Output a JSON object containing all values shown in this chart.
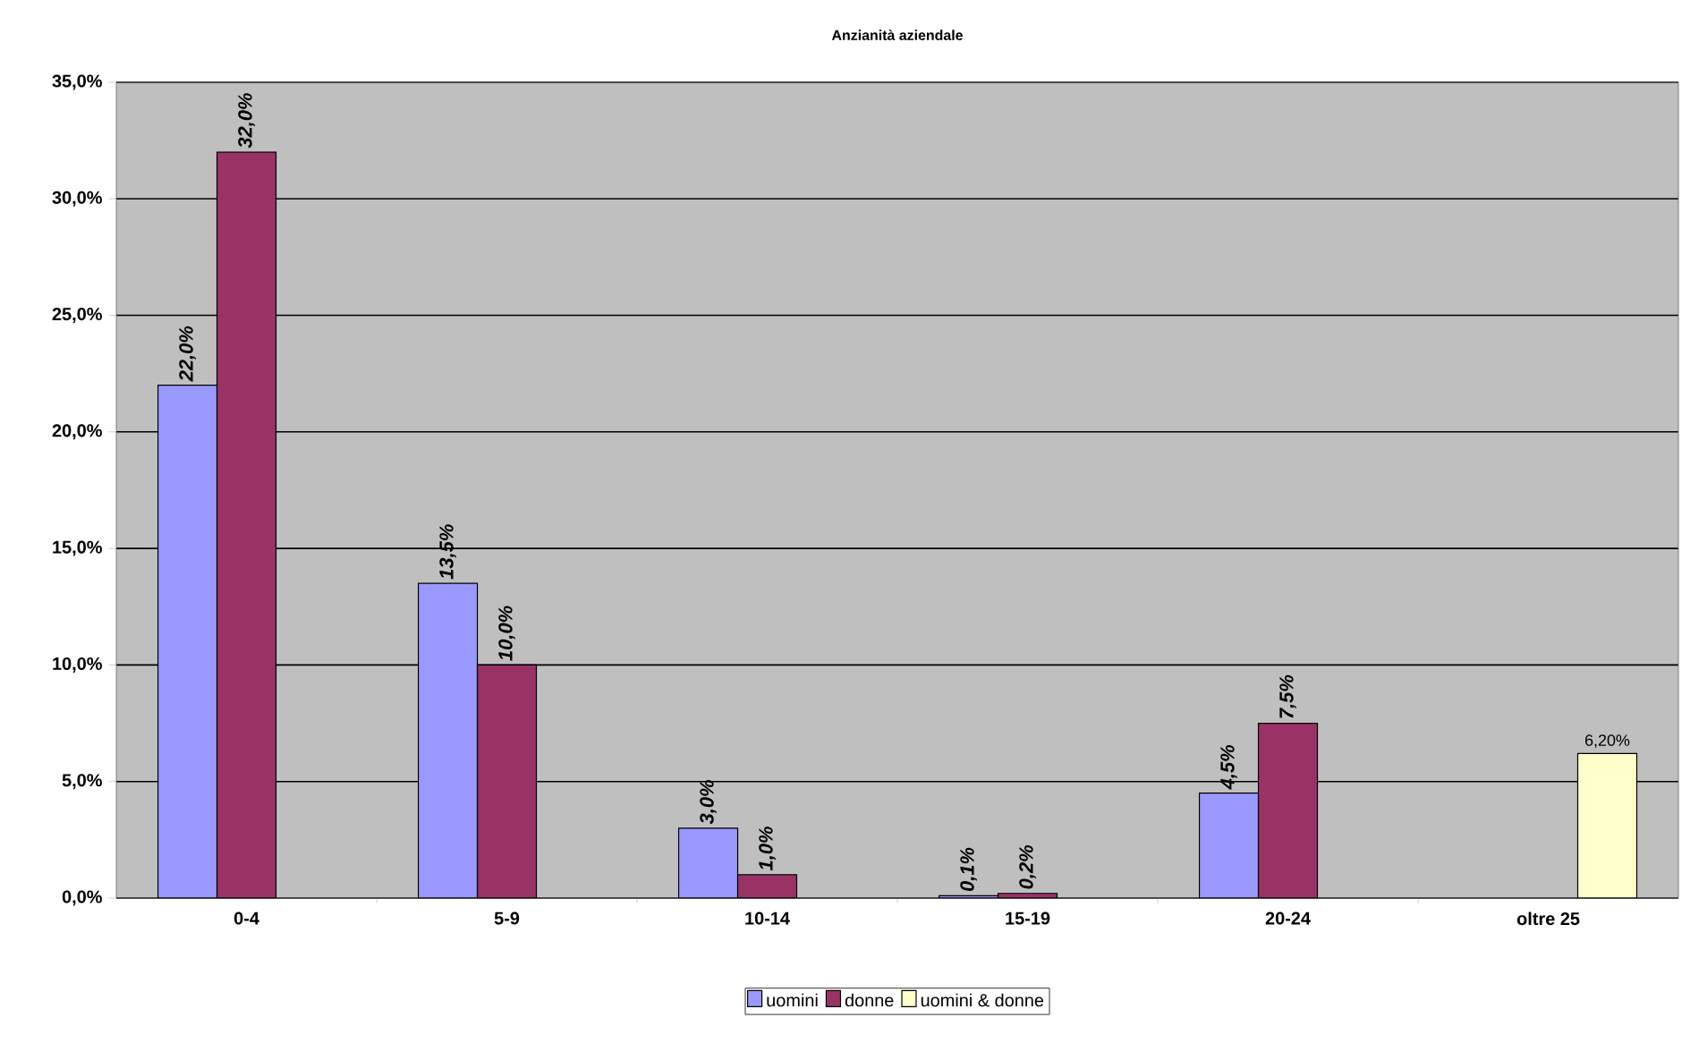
{
  "chart_data": {
    "type": "bar",
    "title": "Anzianità aziendale",
    "categories": [
      "0-4",
      "5-9",
      "10-14",
      "15-19",
      "20-24",
      "oltre 25"
    ],
    "series": [
      {
        "name": "uomini",
        "color": "#9999ff",
        "values": [
          22.0,
          13.5,
          3.0,
          0.1,
          4.5,
          null
        ],
        "value_labels": [
          "22,0%",
          "13,5%",
          "3,0%",
          "0,1%",
          "4,5%",
          null
        ]
      },
      {
        "name": "donne",
        "color": "#993366",
        "values": [
          32.0,
          10.0,
          1.0,
          0.2,
          7.5,
          null
        ],
        "value_labels": [
          "32,0%",
          "10,0%",
          "1,0%",
          "0,2%",
          "7,5%",
          null
        ]
      },
      {
        "name": "uomini & donne",
        "color": "#ffffcc",
        "values": [
          null,
          null,
          null,
          null,
          null,
          6.2
        ],
        "value_labels": [
          null,
          null,
          null,
          null,
          null,
          "6,20%"
        ]
      }
    ],
    "ylim": [
      0,
      35
    ],
    "yticks": [
      {
        "value": 0,
        "label": "0,0%"
      },
      {
        "value": 5,
        "label": "5,0%"
      },
      {
        "value": 10,
        "label": "10,0%"
      },
      {
        "value": 15,
        "label": "15,0%"
      },
      {
        "value": 20,
        "label": "20,0%"
      },
      {
        "value": 25,
        "label": "25,0%"
      },
      {
        "value": 30,
        "label": "30,0%"
      },
      {
        "value": 35,
        "label": "35,0%"
      }
    ],
    "grid": "y",
    "legend": "bottom"
  }
}
